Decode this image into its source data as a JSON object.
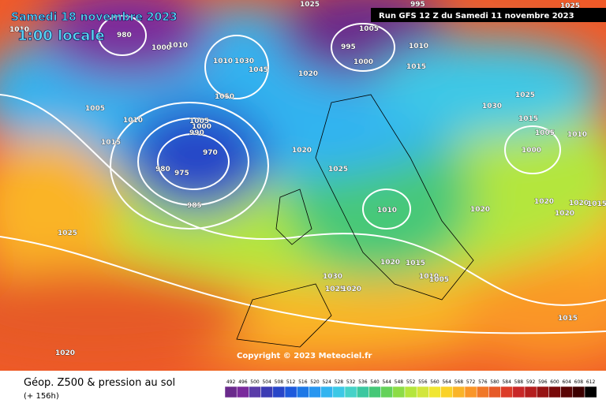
{
  "header": {
    "date": "Samedi 18 novembre 2023",
    "time": "1:00 locale",
    "run": "Run GFS 12 Z du Samedi 11 novembre 2023",
    "copyright": "Copyright © 2023 Meteociel.fr"
  },
  "footer": {
    "title": "Géop. Z500 & pression au sol",
    "lead": "(+ 156h)"
  },
  "isobar_labels": [
    "1025",
    "995",
    "1025",
    "1010",
    "980",
    "1005",
    "1000",
    "1010",
    "995",
    "1000",
    "1010",
    "1015",
    "1010",
    "1030",
    "1045",
    "1050",
    "1020",
    "1005",
    "1030",
    "1025",
    "1010",
    "1015",
    "1005",
    "1000",
    "990",
    "1005",
    "1010",
    "1015",
    "1020",
    "1000",
    "970",
    "980",
    "975",
    "1025",
    "985",
    "1010",
    "1020",
    "1020",
    "1020",
    "1015",
    "1020",
    "1025",
    "1020",
    "1015",
    "1010",
    "1005",
    "1030",
    "1025",
    "1020",
    "1015",
    "1020"
  ],
  "scale": {
    "values": [
      492,
      496,
      500,
      504,
      508,
      512,
      516,
      520,
      524,
      528,
      532,
      536,
      540,
      544,
      548,
      552,
      556,
      560,
      564,
      568,
      572,
      576,
      580,
      584,
      588,
      592,
      596,
      600,
      604,
      608,
      612
    ],
    "colors": [
      "#6a2a8c",
      "#7a2a9c",
      "#5a3ca8",
      "#3c3cb4",
      "#2846c8",
      "#1e5adc",
      "#1e78e6",
      "#2896f0",
      "#32b4f0",
      "#3cc8e6",
      "#46d2c8",
      "#3cc8a0",
      "#46c878",
      "#64d25a",
      "#8cdc46",
      "#b4e63c",
      "#d2e63c",
      "#f0e632",
      "#fad228",
      "#fab428",
      "#fa9628",
      "#f07828",
      "#e65a28",
      "#dc3c28",
      "#c82828",
      "#b41e1e",
      "#961414",
      "#780a0a",
      "#5a0505",
      "#3c0000",
      "#000000"
    ]
  }
}
